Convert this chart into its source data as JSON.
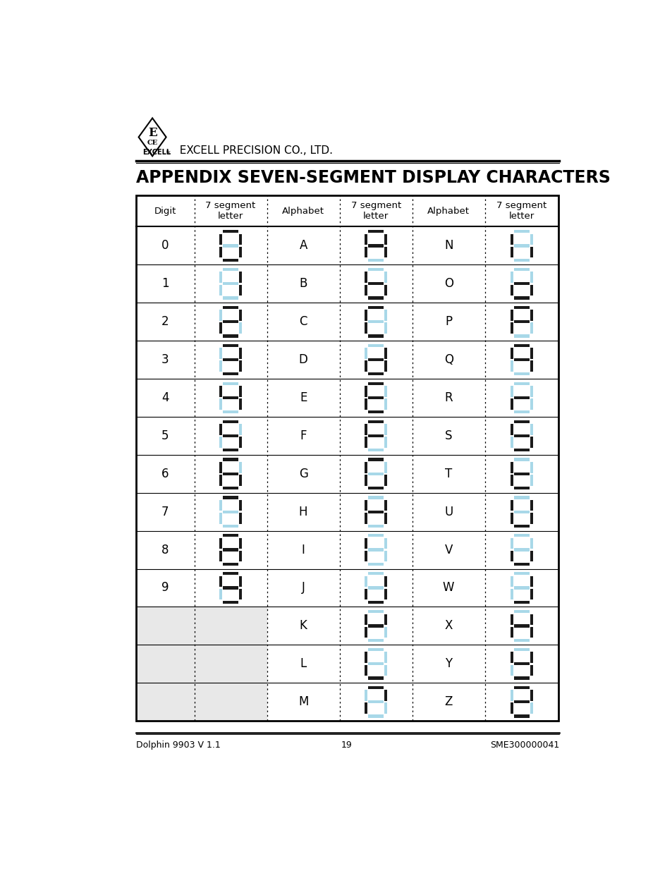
{
  "title": "APPENDIX SEVEN-SEGMENT DISPLAY CHARACTERS",
  "company": "EXCELL PRECISION CO., LTD.",
  "footer_left": "Dolphin 9903 V 1.1",
  "footer_center": "19",
  "footer_right": "SME300000041",
  "col_headers": [
    "Digit",
    "7 segment\nletter",
    "Alphabet",
    "7 segment\nletter",
    "Alphabet",
    "7 segment\nletter"
  ],
  "rows": [
    {
      "digit": "0",
      "alpha1": "A",
      "alpha2": "N"
    },
    {
      "digit": "1",
      "alpha1": "B",
      "alpha2": "O"
    },
    {
      "digit": "2",
      "alpha1": "C",
      "alpha2": "P"
    },
    {
      "digit": "3",
      "alpha1": "D",
      "alpha2": "Q"
    },
    {
      "digit": "4",
      "alpha1": "E",
      "alpha2": "R"
    },
    {
      "digit": "5",
      "alpha1": "F",
      "alpha2": "S"
    },
    {
      "digit": "6",
      "alpha1": "G",
      "alpha2": "T"
    },
    {
      "digit": "7",
      "alpha1": "H",
      "alpha2": "U"
    },
    {
      "digit": "8",
      "alpha1": "I",
      "alpha2": "V"
    },
    {
      "digit": "9",
      "alpha1": "J",
      "alpha2": "W"
    },
    {
      "digit": "",
      "alpha1": "K",
      "alpha2": "X"
    },
    {
      "digit": "",
      "alpha1": "L",
      "alpha2": "Y"
    },
    {
      "digit": "",
      "alpha1": "M",
      "alpha2": "Z"
    }
  ],
  "seg_on_color": "#1a1a1a",
  "seg_off_color": "#a8d8e8",
  "bg_color": "#ffffff",
  "gray_bg": "#e8e8e8",
  "segments": {
    "0": [
      1,
      1,
      1,
      1,
      1,
      1,
      0
    ],
    "1": [
      0,
      1,
      1,
      0,
      0,
      0,
      0
    ],
    "2": [
      1,
      1,
      0,
      1,
      1,
      0,
      1
    ],
    "3": [
      1,
      1,
      1,
      1,
      0,
      0,
      1
    ],
    "4": [
      0,
      1,
      1,
      0,
      0,
      1,
      1
    ],
    "5": [
      1,
      0,
      1,
      1,
      0,
      1,
      1
    ],
    "6": [
      1,
      0,
      1,
      1,
      1,
      1,
      1
    ],
    "7": [
      1,
      1,
      1,
      0,
      0,
      0,
      0
    ],
    "8": [
      1,
      1,
      1,
      1,
      1,
      1,
      1
    ],
    "9": [
      1,
      1,
      1,
      1,
      0,
      1,
      1
    ],
    "A": [
      1,
      1,
      1,
      0,
      1,
      1,
      1
    ],
    "B": [
      0,
      0,
      1,
      1,
      1,
      1,
      1
    ],
    "C": [
      1,
      0,
      0,
      1,
      1,
      1,
      0
    ],
    "D": [
      0,
      1,
      1,
      1,
      1,
      0,
      1
    ],
    "E": [
      1,
      0,
      0,
      1,
      1,
      1,
      1
    ],
    "F": [
      1,
      0,
      0,
      0,
      1,
      1,
      1
    ],
    "G": [
      1,
      0,
      1,
      1,
      1,
      1,
      0
    ],
    "H": [
      0,
      1,
      1,
      0,
      1,
      1,
      1
    ],
    "I": [
      0,
      0,
      0,
      0,
      1,
      1,
      0
    ],
    "J": [
      0,
      1,
      1,
      1,
      1,
      0,
      0
    ],
    "K": [
      0,
      1,
      0,
      0,
      1,
      1,
      1
    ],
    "L": [
      0,
      0,
      0,
      1,
      1,
      1,
      0
    ],
    "M": [
      1,
      1,
      0,
      0,
      1,
      0,
      0
    ],
    "N": [
      0,
      0,
      1,
      0,
      1,
      1,
      0
    ],
    "O": [
      0,
      0,
      1,
      1,
      1,
      0,
      1
    ],
    "P": [
      1,
      1,
      0,
      0,
      1,
      1,
      1
    ],
    "Q": [
      1,
      1,
      1,
      0,
      0,
      1,
      1
    ],
    "R": [
      0,
      0,
      0,
      0,
      1,
      0,
      1
    ],
    "S": [
      1,
      0,
      1,
      1,
      0,
      1,
      1
    ],
    "T": [
      0,
      0,
      0,
      1,
      1,
      1,
      1
    ],
    "U": [
      0,
      1,
      1,
      1,
      1,
      1,
      0
    ],
    "V": [
      0,
      0,
      1,
      1,
      1,
      0,
      0
    ],
    "W": [
      0,
      1,
      1,
      1,
      0,
      0,
      0
    ],
    "X": [
      0,
      1,
      1,
      0,
      1,
      1,
      1
    ],
    "Y": [
      0,
      1,
      1,
      1,
      0,
      1,
      1
    ],
    "Z": [
      1,
      1,
      0,
      1,
      1,
      0,
      1
    ]
  }
}
